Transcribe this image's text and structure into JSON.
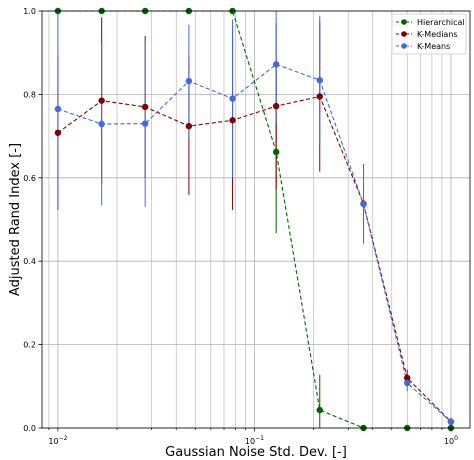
{
  "chart_data": {
    "type": "line",
    "xlabel": "Gaussian Noise Std. Dev. [-]",
    "ylabel": "Adjusted Rand Index [-]",
    "xscale": "log",
    "xlim": [
      0.0083,
      1.25
    ],
    "ylim": [
      0.0,
      1.0
    ],
    "grid": true,
    "legend": "top-right",
    "x": [
      0.01,
      0.0167,
      0.0278,
      0.0464,
      0.0774,
      0.129,
      0.215,
      0.359,
      0.599,
      1.0
    ],
    "yticks": [
      "0.0",
      "0.2",
      "0.4",
      "0.6",
      "0.8",
      "1.0"
    ],
    "xticks": [
      {
        "base": "10",
        "exp": "−2"
      },
      {
        "base": "10",
        "exp": "−1"
      },
      {
        "base": "10",
        "exp": "0"
      }
    ],
    "series": [
      {
        "name": "Hierarchical",
        "color": "#006400",
        "values": [
          1.0,
          1.0,
          1.0,
          1.0,
          1.0,
          0.662,
          0.043,
          0.0,
          0.0,
          0.0
        ],
        "err": [
          0.0,
          0.0,
          0.0,
          0.0,
          0.0,
          0.195,
          0.085,
          0.0,
          0.0,
          0.0
        ]
      },
      {
        "name": "K-Medians",
        "color": "#800000",
        "values": [
          0.708,
          0.785,
          0.77,
          0.724,
          0.738,
          0.772,
          0.795,
          0.538,
          0.12,
          0.015
        ],
        "err": [
          0.185,
          0.2,
          0.17,
          0.165,
          0.215,
          0.2,
          0.18,
          0.095,
          0.02,
          0.01
        ]
      },
      {
        "name": "K-Means",
        "color": "#4169E1",
        "values": [
          0.765,
          0.729,
          0.73,
          0.832,
          0.79,
          0.872,
          0.834,
          0.537,
          0.108,
          0.015
        ],
        "err": [
          0.24,
          0.195,
          0.2,
          0.135,
          0.19,
          0.14,
          0.155,
          0.095,
          0.02,
          0.01
        ]
      }
    ]
  }
}
